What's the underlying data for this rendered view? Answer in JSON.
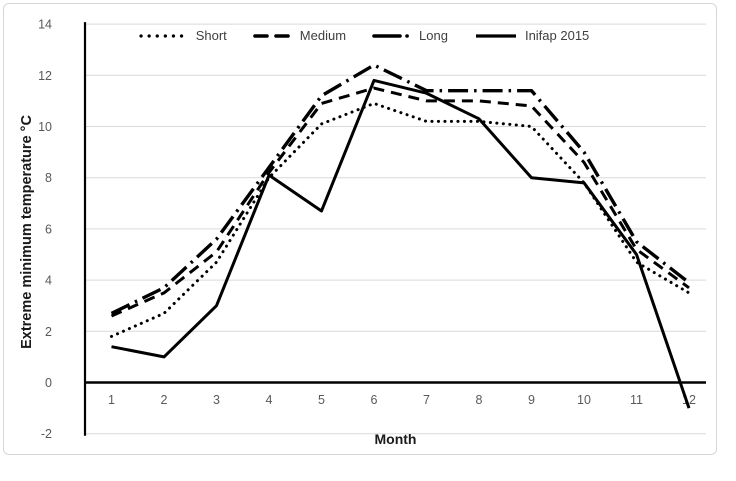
{
  "colors": {
    "line": "#000000",
    "grid": "#d9d9d9",
    "axis": "#000000",
    "tick_text": "#595959",
    "legend_text": "#404040",
    "frame_border": "#d6d6d6",
    "background": "#ffffff"
  },
  "chart_data": {
    "type": "line",
    "title": "",
    "xlabel": "Month",
    "ylabel": "Extreme minimum temperature °C",
    "x": [
      1,
      2,
      3,
      4,
      5,
      6,
      7,
      8,
      9,
      10,
      11,
      12
    ],
    "xlim": [
      1,
      12
    ],
    "ylim": [
      -2,
      14
    ],
    "ytick_step": 2,
    "yticks": [
      14,
      12,
      10,
      8,
      6,
      4,
      2,
      0,
      -2
    ],
    "grid": true,
    "legend_position": "top",
    "series": [
      {
        "name": "Short",
        "style": "dotted",
        "values": [
          1.8,
          2.7,
          4.7,
          8.0,
          10.1,
          10.9,
          10.2,
          10.2,
          10.0,
          7.8,
          4.7,
          3.5
        ]
      },
      {
        "name": "Medium",
        "style": "dashed",
        "values": [
          2.6,
          3.5,
          5.1,
          8.2,
          10.9,
          11.5,
          11.0,
          11.0,
          10.8,
          8.6,
          5.2,
          3.7
        ]
      },
      {
        "name": "Long",
        "style": "long-dash-dot",
        "values": [
          2.7,
          3.7,
          5.6,
          8.4,
          11.2,
          12.4,
          11.4,
          11.4,
          11.4,
          9.0,
          5.5,
          3.9
        ]
      },
      {
        "name": "Inifap 2015",
        "style": "solid",
        "values": [
          1.4,
          1.0,
          3.0,
          8.1,
          6.7,
          11.8,
          11.3,
          10.3,
          8.0,
          7.8,
          5.0,
          -1.0
        ]
      }
    ]
  }
}
